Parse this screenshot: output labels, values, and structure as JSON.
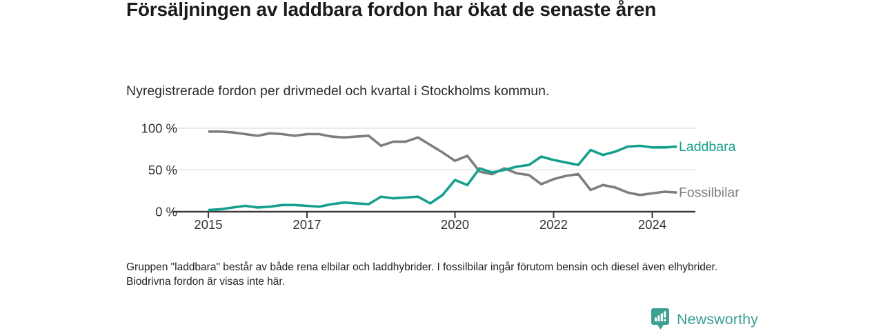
{
  "title": "Försäljningen av laddbara fordon har ökat de senaste åren",
  "subtitle": "Nyregistrerade fordon per drivmedel och kvartal i Stockholms kommun.",
  "footnote": "Gruppen \"laddbara\" består av både rena elbilar och laddhybrider. I fossilbilar ingår förutom bensin och diesel även elhybrider. Biodrivna fordon är visas inte här.",
  "logo": {
    "text": "Newsworthy",
    "icon": "bar-chart-speech-bubble-icon",
    "color": "#3ca092"
  },
  "colors": {
    "laddbara": "#14a08c",
    "fossilbilar": "#7d7e82",
    "gridline": "#dedede",
    "axis": "#3a3a3a",
    "tick_label": "#333333"
  },
  "chart_data": {
    "type": "line",
    "title": "Nyregistrerade fordon per drivmedel och kvartal i Stockholms kommun",
    "x_unit": "quarter",
    "x_start": "2015-Q1",
    "x_end": "2024-Q3",
    "x_tick_labels": [
      "2015",
      "2017",
      "2020",
      "2022",
      "2024"
    ],
    "x_tick_years": [
      2015,
      2017,
      2020,
      2022,
      2024
    ],
    "ylim": [
      0,
      100
    ],
    "y_ticks": [
      {
        "value": 0,
        "label": "0 %"
      },
      {
        "value": 50,
        "label": "50 %"
      },
      {
        "value": 100,
        "label": "100 %"
      }
    ],
    "grid": "horizontal",
    "legend_position": "end-of-line",
    "series": [
      {
        "name": "Fossilbilar",
        "color": "#7d7e82",
        "values": [
          96,
          96,
          95,
          93,
          91,
          94,
          93,
          91,
          93,
          93,
          90,
          89,
          90,
          91,
          79,
          84,
          84,
          89,
          80,
          71,
          61,
          67,
          48,
          45,
          52,
          46,
          44,
          33,
          39,
          43,
          45,
          26,
          32,
          29,
          23,
          20,
          22,
          24,
          23
        ]
      },
      {
        "name": "Laddbara",
        "color": "#14a08c",
        "values": [
          2,
          3,
          5,
          7,
          5,
          6,
          8,
          8,
          7,
          6,
          9,
          11,
          10,
          9,
          18,
          16,
          17,
          18,
          10,
          20,
          38,
          32,
          52,
          47,
          50,
          54,
          56,
          66,
          62,
          59,
          56,
          74,
          68,
          72,
          78,
          79,
          77,
          77,
          78
        ]
      }
    ]
  }
}
